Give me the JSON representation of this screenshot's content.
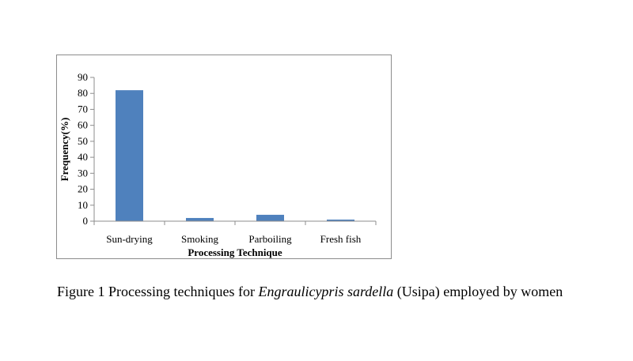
{
  "chart_data": {
    "type": "bar",
    "categories": [
      "Sun-drying",
      "Smoking",
      "Parboiling",
      "Fresh fish"
    ],
    "values": [
      82,
      2,
      4,
      1
    ],
    "xlabel": "Processing Technique",
    "ylabel": "Frequency(%)",
    "ylim": [
      0,
      90
    ],
    "yticks": [
      0,
      10,
      20,
      30,
      40,
      50,
      60,
      70,
      80,
      90
    ],
    "grid": false,
    "legend": "none",
    "bar_color": "#4f81bd"
  },
  "caption": {
    "prefix": "Figure 1 Processing techniques for ",
    "species": "Engraulicypris sardella",
    "suffix": " (Usipa) employed by women"
  }
}
